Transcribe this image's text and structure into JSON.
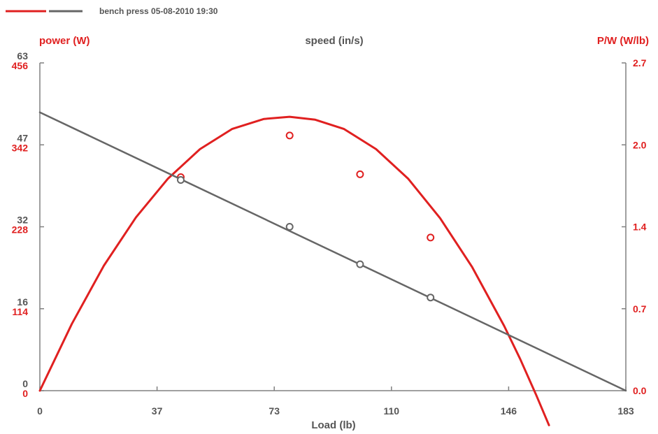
{
  "chart_data": {
    "type": "line",
    "title": "bench press 05-08-2010 19:30",
    "xlabel": "Load (lb)",
    "xlim": [
      0,
      183
    ],
    "x_ticks": [
      "0",
      "37",
      "73",
      "110",
      "146",
      "183"
    ],
    "axes": {
      "left_power": {
        "label": "power (W)",
        "range": [
          0,
          456
        ],
        "ticks": [
          "0",
          "114",
          "228",
          "342",
          "456"
        ],
        "color": "#e02020"
      },
      "left_speed": {
        "label": "speed (in/s)",
        "range": [
          0,
          63
        ],
        "ticks": [
          "0",
          "16",
          "32",
          "47",
          "63"
        ],
        "color": "#666666"
      },
      "right_pw": {
        "label": "P/W (W/lb)",
        "range": [
          0,
          2.7
        ],
        "ticks": [
          "0.0",
          "0.7",
          "1.4",
          "2.0",
          "2.7"
        ],
        "color": "#e02020"
      }
    },
    "series": [
      {
        "kind": "fit-curve",
        "axis": "left_power",
        "color": "#e02020",
        "x": [
          0,
          10,
          20,
          30,
          40,
          50,
          60,
          70,
          78,
          86,
          95,
          105,
          115,
          125,
          135,
          145,
          150,
          155,
          159
        ],
        "y": [
          0,
          93,
          174,
          241,
          295,
          336,
          364,
          378,
          381,
          377,
          364,
          336,
          295,
          240,
          172,
          90,
          44,
          -6,
          -48
        ]
      },
      {
        "kind": "measured",
        "axis": "left_power",
        "color": "#e02020",
        "x": [
          44,
          78,
          100,
          122
        ],
        "y": [
          297,
          355,
          301,
          213
        ]
      },
      {
        "kind": "fit-line",
        "axis": "left_speed",
        "color": "#666666",
        "x": [
          0,
          183
        ],
        "y": [
          53.5,
          0
        ]
      },
      {
        "kind": "measured",
        "axis": "left_speed",
        "color": "#666666",
        "x": [
          44,
          78,
          100,
          122
        ],
        "y": [
          40.5,
          31.5,
          24.3,
          17.9
        ]
      }
    ],
    "legend": {
      "position": "top-left",
      "swatches": [
        "#e02020",
        "#666666"
      ]
    },
    "grid": false
  }
}
